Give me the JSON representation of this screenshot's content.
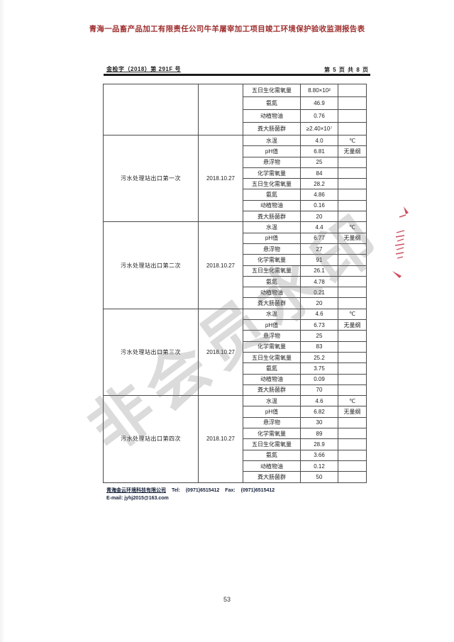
{
  "title": "青海一品畜产品加工有限责任公司牛羊屠宰加工项目竣工环境保护验收监测报告表",
  "header": {
    "left": "金检字（2018）第 291F 号",
    "right": "第 5 页 共 8 页"
  },
  "watermark": "非会员水印",
  "table": {
    "blocks": [
      {
        "site": "",
        "date": "",
        "rows": [
          {
            "param": "五日生化需氧量",
            "value": "8.80×10²",
            "unit": ""
          },
          {
            "param": "氨氮",
            "value": "46.9",
            "unit": ""
          },
          {
            "param": "动植物油",
            "value": "0.76",
            "unit": ""
          },
          {
            "param": "粪大肠菌群",
            "value": "≥2.40×10⁷",
            "unit": ""
          }
        ]
      },
      {
        "site": "污水处理站出口第一次",
        "date": "2018.10.27",
        "rows": [
          {
            "param": "水温",
            "value": "4.0",
            "unit": "℃"
          },
          {
            "param": "pH值",
            "value": "6.81",
            "unit": "无量纲"
          },
          {
            "param": "悬浮物",
            "value": "25",
            "unit": ""
          },
          {
            "param": "化学需氧量",
            "value": "84",
            "unit": ""
          },
          {
            "param": "五日生化需氧量",
            "value": "28.2",
            "unit": ""
          },
          {
            "param": "氨氮",
            "value": "4.86",
            "unit": ""
          },
          {
            "param": "动植物油",
            "value": "0.16",
            "unit": ""
          },
          {
            "param": "粪大肠菌群",
            "value": "20",
            "unit": ""
          }
        ]
      },
      {
        "site": "污水处理站出口第二次",
        "date": "2018.10.27",
        "rows": [
          {
            "param": "水温",
            "value": "4.4",
            "unit": "℃"
          },
          {
            "param": "pH值",
            "value": "6.77",
            "unit": "无量纲"
          },
          {
            "param": "悬浮物",
            "value": "27",
            "unit": ""
          },
          {
            "param": "化学需氧量",
            "value": "91",
            "unit": ""
          },
          {
            "param": "五日生化需氧量",
            "value": "26.1",
            "unit": ""
          },
          {
            "param": "氨氮",
            "value": "4.78",
            "unit": ""
          },
          {
            "param": "动植物油",
            "value": "0.21",
            "unit": ""
          },
          {
            "param": "粪大肠菌群",
            "value": "20",
            "unit": ""
          }
        ]
      },
      {
        "site": "污水处理站出口第三次",
        "date": "2018.10.27",
        "rows": [
          {
            "param": "水温",
            "value": "4.6",
            "unit": "℃"
          },
          {
            "param": "pH值",
            "value": "6.73",
            "unit": "无量纲"
          },
          {
            "param": "悬浮物",
            "value": "25",
            "unit": ""
          },
          {
            "param": "化学需氧量",
            "value": "83",
            "unit": ""
          },
          {
            "param": "五日生化需氧量",
            "value": "25.2",
            "unit": ""
          },
          {
            "param": "氨氮",
            "value": "3.75",
            "unit": ""
          },
          {
            "param": "动植物油",
            "value": "0.09",
            "unit": ""
          },
          {
            "param": "粪大肠菌群",
            "value": "70",
            "unit": ""
          }
        ]
      },
      {
        "site": "污水处理站出口第四次",
        "date": "2018.10.27",
        "rows": [
          {
            "param": "水温",
            "value": "4.6",
            "unit": "℃"
          },
          {
            "param": "pH值",
            "value": "6.82",
            "unit": "无量纲"
          },
          {
            "param": "悬浮物",
            "value": "30",
            "unit": ""
          },
          {
            "param": "化学需氧量",
            "value": "89",
            "unit": ""
          },
          {
            "param": "五日生化需氧量",
            "value": "28.9",
            "unit": ""
          },
          {
            "param": "氨氮",
            "value": "3.66",
            "unit": ""
          },
          {
            "param": "动植物油",
            "value": "0.12",
            "unit": ""
          },
          {
            "param": "粪大肠菌群",
            "value": "50",
            "unit": ""
          }
        ]
      }
    ]
  },
  "footer": {
    "company": "青海金云环境科技有限公司",
    "tel_label": "Tel:",
    "tel_value": "(0971)6515412",
    "fax_label": "Fax:",
    "fax_value": "(0971)6515412",
    "email_label": "E-mail:",
    "email_value": "jyhj2015@163.com"
  },
  "page_number": "53",
  "colors": {
    "title_red": "#a03030",
    "stamp_red": "#cb3a4e",
    "watermark_gray": "#6e6e6e",
    "table_line": "#4a4a4a"
  },
  "stamp_icon": "red-seal-fragment"
}
